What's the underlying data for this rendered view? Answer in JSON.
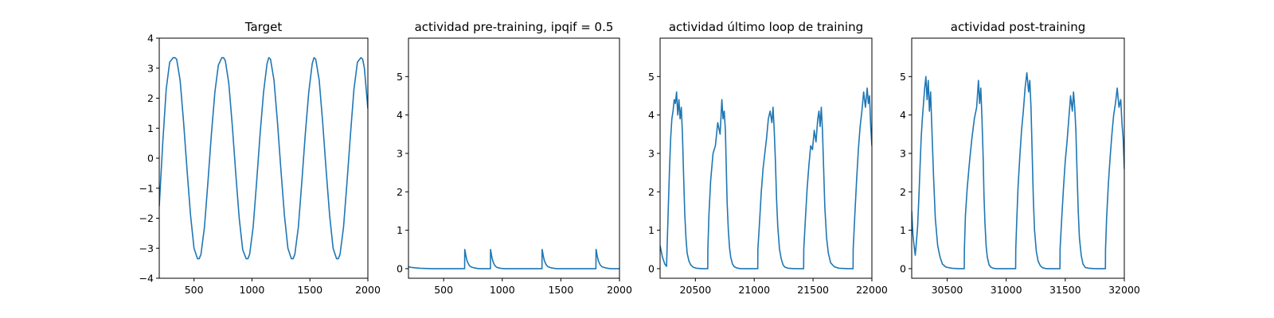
{
  "figure": {
    "background": "#ffffff",
    "line_color": "#1f77b4"
  },
  "chart_data": [
    {
      "type": "line",
      "title": "Target",
      "xlim": [
        200,
        2000
      ],
      "ylim": [
        -4,
        4
      ],
      "xticks": [
        500,
        1000,
        1500,
        2000
      ],
      "xticklabels": [
        "500",
        "1000",
        "1500",
        "2000"
      ],
      "yticks": [
        -4,
        -3,
        -2,
        -1,
        0,
        1,
        2,
        3,
        4
      ],
      "yticklabels": [
        "−4",
        "−3",
        "−2",
        "−1",
        "0",
        "1",
        "2",
        "3",
        "4"
      ],
      "series": [
        {
          "x": [
            200,
            230,
            260,
            290,
            320,
            335,
            350,
            380,
            410,
            440,
            470,
            500,
            530,
            545,
            560,
            590,
            620,
            650,
            680,
            710,
            740,
            755,
            770,
            800,
            830,
            860,
            890,
            920,
            950,
            965,
            980,
            1010,
            1040,
            1070,
            1100,
            1130,
            1145,
            1160,
            1190,
            1220,
            1250,
            1280,
            1310,
            1340,
            1355,
            1370,
            1400,
            1430,
            1460,
            1490,
            1520,
            1535,
            1550,
            1580,
            1610,
            1640,
            1670,
            1700,
            1730,
            1745,
            1760,
            1790,
            1820,
            1850,
            1880,
            1910,
            1940,
            1955,
            1970,
            2000
          ],
          "y": [
            -1.6,
            0.5,
            2.3,
            3.2,
            3.35,
            3.35,
            3.3,
            2.6,
            1.2,
            -0.4,
            -1.9,
            -3.0,
            -3.35,
            -3.35,
            -3.2,
            -2.3,
            -0.8,
            0.8,
            2.2,
            3.1,
            3.35,
            3.35,
            3.25,
            2.5,
            1.1,
            -0.5,
            -2.0,
            -3.05,
            -3.35,
            -3.35,
            -3.2,
            -2.3,
            -0.8,
            0.8,
            2.2,
            3.15,
            3.35,
            3.3,
            2.6,
            1.2,
            -0.4,
            -1.9,
            -3.0,
            -3.35,
            -3.35,
            -3.2,
            -2.3,
            -0.8,
            0.8,
            2.2,
            3.15,
            3.35,
            3.3,
            2.6,
            1.2,
            -0.4,
            -1.9,
            -3.0,
            -3.35,
            -3.35,
            -3.2,
            -2.3,
            -0.8,
            0.8,
            2.3,
            3.2,
            3.35,
            3.3,
            3.0,
            1.65
          ]
        }
      ]
    },
    {
      "type": "line",
      "title": "actividad pre-training, ipqif = 0.5",
      "xlim": [
        200,
        2000
      ],
      "ylim": [
        -0.25,
        6
      ],
      "xticks": [
        500,
        1000,
        1500,
        2000
      ],
      "xticklabels": [
        "500",
        "1000",
        "1500",
        "2000"
      ],
      "yticks": [
        0,
        1,
        2,
        3,
        4,
        5
      ],
      "yticklabels": [
        "0",
        "1",
        "2",
        "3",
        "4",
        "5"
      ],
      "series": [
        {
          "x": [
            200,
            215,
            230,
            260,
            300,
            400,
            500,
            600,
            679,
            680,
            683,
            690,
            700,
            715,
            730,
            760,
            800,
            850,
            899,
            900,
            903,
            910,
            920,
            935,
            950,
            980,
            1020,
            1100,
            1200,
            1300,
            1339,
            1340,
            1343,
            1350,
            1360,
            1375,
            1390,
            1420,
            1460,
            1550,
            1650,
            1750,
            1799,
            1800,
            1803,
            1810,
            1820,
            1835,
            1850,
            1880,
            1920,
            1960,
            2000
          ],
          "y": [
            0.05,
            0.04,
            0.03,
            0.02,
            0.01,
            0.0,
            0.0,
            0.0,
            0.0,
            0.5,
            0.46,
            0.33,
            0.2,
            0.1,
            0.05,
            0.02,
            0.0,
            0.0,
            0.0,
            0.5,
            0.45,
            0.32,
            0.19,
            0.09,
            0.04,
            0.01,
            0.0,
            0.0,
            0.0,
            0.0,
            0.0,
            0.5,
            0.46,
            0.33,
            0.2,
            0.1,
            0.05,
            0.02,
            0.0,
            0.0,
            0.0,
            0.0,
            0.0,
            0.5,
            0.46,
            0.33,
            0.2,
            0.1,
            0.05,
            0.02,
            0.0,
            0.0,
            0.0
          ]
        }
      ]
    },
    {
      "type": "line",
      "title": "actividad último loop de training",
      "xlim": [
        20200,
        22000
      ],
      "ylim": [
        -0.25,
        6
      ],
      "xticks": [
        20500,
        21000,
        21500,
        22000
      ],
      "xticklabels": [
        "20500",
        "21000",
        "21500",
        "22000"
      ],
      "yticks": [
        0,
        1,
        2,
        3,
        4,
        5
      ],
      "yticklabels": [
        "0",
        "1",
        "2",
        "3",
        "4",
        "5"
      ],
      "series": [
        {
          "x": [
            20200,
            20220,
            20240,
            20255,
            20260,
            20270,
            20280,
            20290,
            20300,
            20310,
            20320,
            20330,
            20340,
            20350,
            20360,
            20370,
            20380,
            20390,
            20400,
            20410,
            20420,
            20430,
            20445,
            20460,
            20480,
            20510,
            20560,
            20605,
            20606,
            20615,
            20630,
            20650,
            20670,
            20690,
            20710,
            20725,
            20735,
            20745,
            20755,
            20762,
            20770,
            20780,
            20790,
            20800,
            20815,
            20830,
            20850,
            20880,
            20930,
            21030,
            21031,
            21045,
            21060,
            21075,
            21090,
            21105,
            21120,
            21135,
            21150,
            21160,
            21170,
            21180,
            21190,
            21200,
            21215,
            21230,
            21245,
            21260,
            21290,
            21340,
            21420,
            21421,
            21435,
            21450,
            21465,
            21480,
            21495,
            21510,
            21525,
            21540,
            21550,
            21560,
            21570,
            21580,
            21590,
            21600,
            21615,
            21630,
            21650,
            21680,
            21720,
            21800,
            21840,
            21841,
            21855,
            21870,
            21885,
            21900,
            21915,
            21930,
            21945,
            21960,
            21970,
            21980,
            21990,
            22000
          ],
          "y": [
            0.6,
            0.3,
            0.12,
            0.06,
            0.6,
            1.6,
            2.6,
            3.4,
            3.9,
            4.1,
            4.4,
            4.3,
            4.6,
            4.0,
            4.4,
            3.9,
            4.2,
            3.5,
            2.4,
            1.4,
            0.8,
            0.4,
            0.2,
            0.1,
            0.04,
            0.01,
            0.0,
            0.0,
            0.5,
            1.4,
            2.3,
            3.0,
            3.2,
            3.8,
            3.5,
            4.4,
            3.9,
            4.1,
            3.6,
            2.7,
            1.7,
            1.0,
            0.55,
            0.3,
            0.12,
            0.05,
            0.02,
            0.0,
            0.0,
            0.0,
            0.5,
            1.2,
            2.0,
            2.6,
            3.0,
            3.4,
            3.9,
            4.1,
            3.8,
            4.2,
            3.6,
            2.8,
            1.8,
            1.1,
            0.5,
            0.25,
            0.1,
            0.04,
            0.01,
            0.0,
            0.0,
            0.5,
            1.3,
            2.1,
            2.7,
            3.2,
            3.1,
            3.6,
            3.3,
            3.9,
            4.1,
            3.7,
            4.2,
            3.6,
            2.6,
            1.6,
            0.8,
            0.4,
            0.15,
            0.05,
            0.01,
            0.0,
            0.0,
            0.5,
            1.4,
            2.3,
            3.1,
            3.7,
            4.1,
            4.6,
            4.2,
            4.7,
            4.3,
            4.5,
            3.7,
            3.2
          ]
        }
      ]
    },
    {
      "type": "line",
      "title": "actividad post-training",
      "xlim": [
        30200,
        32000
      ],
      "ylim": [
        -0.25,
        6
      ],
      "xticks": [
        30500,
        31000,
        31500,
        32000
      ],
      "xticklabels": [
        "30500",
        "31000",
        "31500",
        "32000"
      ],
      "yticks": [
        0,
        1,
        2,
        3,
        4,
        5
      ],
      "yticklabels": [
        "0",
        "1",
        "2",
        "3",
        "4",
        "5"
      ],
      "series": [
        {
          "x": [
            30200,
            30210,
            30220,
            30230,
            30240,
            30250,
            30260,
            30270,
            30280,
            30290,
            30300,
            30310,
            30320,
            30330,
            30340,
            30350,
            30360,
            30370,
            30385,
            30400,
            30420,
            30440,
            30460,
            30490,
            30540,
            30600,
            30645,
            30646,
            30655,
            30670,
            30690,
            30710,
            30730,
            30750,
            30765,
            30775,
            30785,
            30795,
            30805,
            30812,
            30820,
            30830,
            30840,
            30855,
            30870,
            30890,
            30920,
            30980,
            31080,
            31081,
            31090,
            31100,
            31115,
            31130,
            31145,
            31160,
            31175,
            31190,
            31200,
            31210,
            31220,
            31230,
            31240,
            31255,
            31270,
            31290,
            31310,
            31340,
            31400,
            31455,
            31456,
            31470,
            31485,
            31500,
            31515,
            31530,
            31545,
            31560,
            31570,
            31580,
            31590,
            31600,
            31610,
            31620,
            31635,
            31650,
            31670,
            31700,
            31750,
            31840,
            31841,
            31850,
            31865,
            31880,
            31895,
            31910,
            31925,
            31940,
            31955,
            31970,
            31980,
            31990,
            32000
          ],
          "y": [
            1.5,
            0.9,
            0.6,
            0.35,
            0.7,
            1.1,
            1.8,
            2.6,
            3.4,
            3.9,
            4.3,
            4.7,
            5.0,
            4.4,
            4.9,
            4.1,
            4.6,
            3.7,
            2.4,
            1.3,
            0.6,
            0.3,
            0.12,
            0.04,
            0.01,
            0.0,
            0.0,
            0.5,
            1.4,
            2.1,
            2.8,
            3.4,
            3.9,
            4.2,
            4.9,
            4.3,
            4.7,
            3.9,
            2.9,
            1.9,
            1.2,
            0.6,
            0.3,
            0.1,
            0.04,
            0.01,
            0.0,
            0.0,
            0.0,
            0.5,
            1.3,
            2.1,
            2.9,
            3.6,
            4.1,
            4.7,
            5.1,
            4.6,
            4.9,
            4.2,
            3.0,
            1.8,
            1.0,
            0.45,
            0.2,
            0.07,
            0.02,
            0.0,
            0.0,
            0.0,
            0.5,
            1.3,
            2.1,
            2.8,
            3.3,
            3.9,
            4.5,
            4.1,
            4.6,
            4.2,
            3.6,
            2.5,
            1.5,
            0.8,
            0.35,
            0.12,
            0.03,
            0.01,
            0.0,
            0.0,
            0.5,
            1.3,
            2.2,
            2.9,
            3.5,
            4.0,
            4.3,
            4.7,
            4.2,
            4.4,
            3.8,
            3.4,
            2.6
          ]
        }
      ]
    }
  ]
}
